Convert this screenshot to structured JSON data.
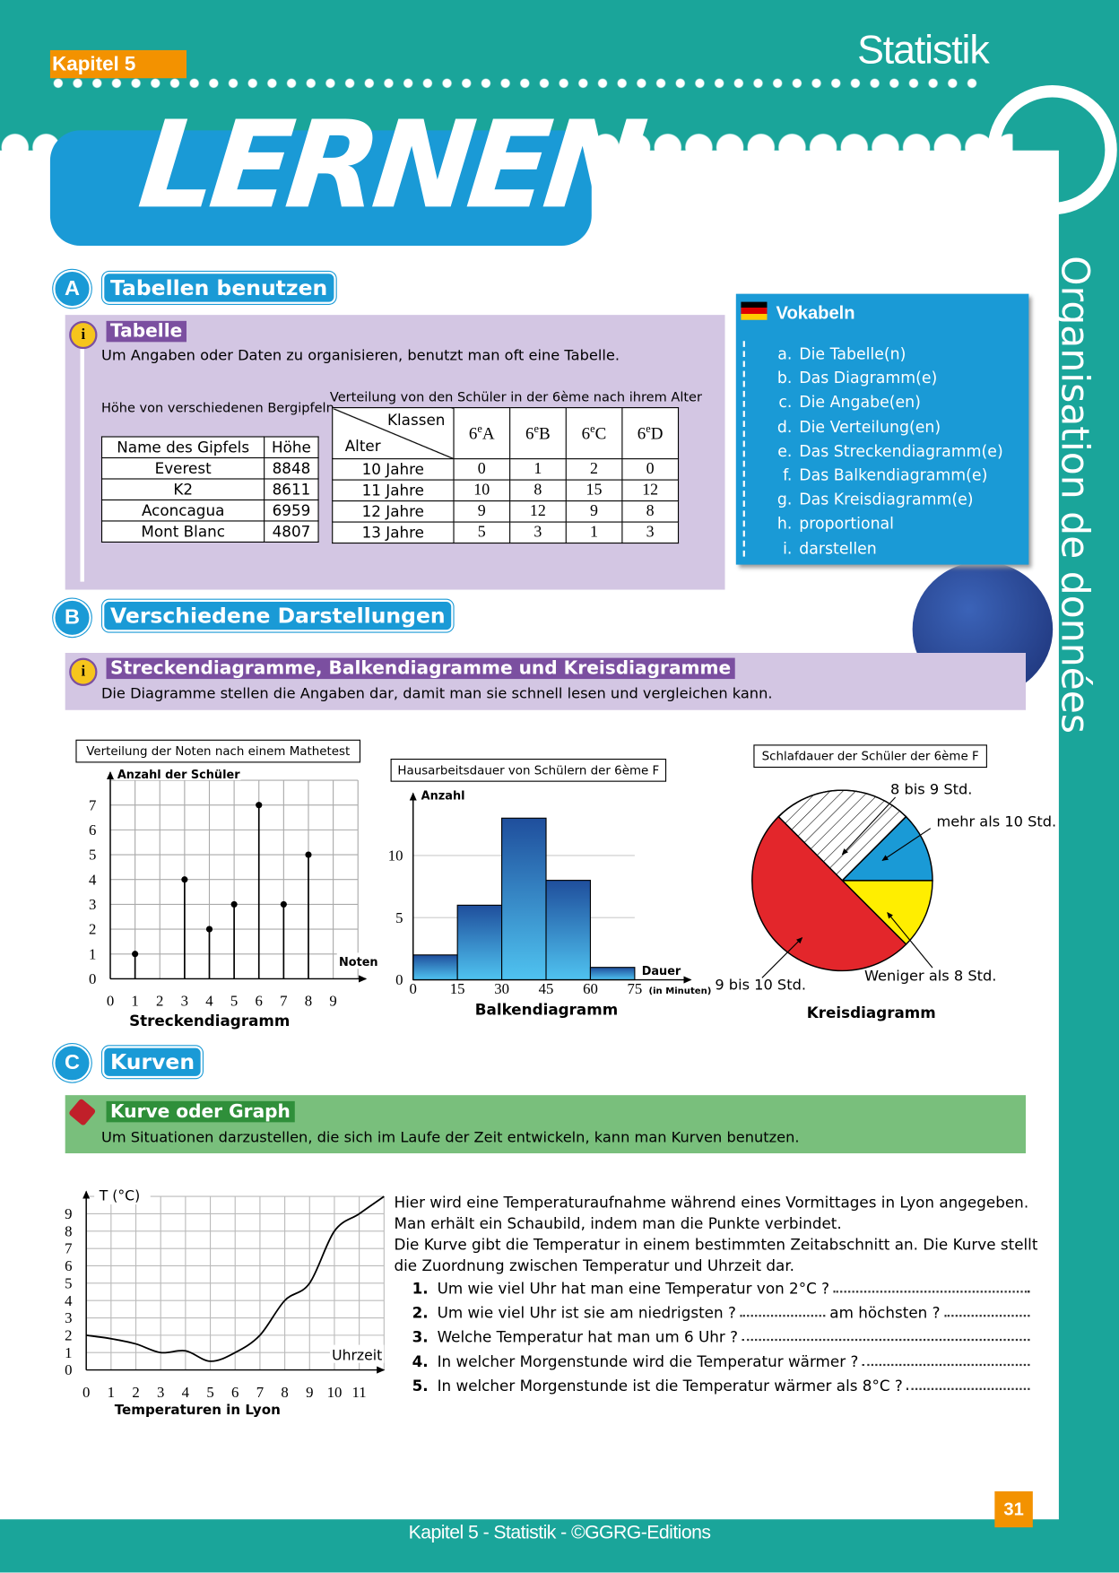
{
  "header": {
    "chapter": "Kapitel 5",
    "subject": "Statistik",
    "banner": "LERNEN",
    "side_title": "Organisation de données"
  },
  "section_a": {
    "letter": "A",
    "title": "Tabellen benutzen",
    "info_title": "Tabelle",
    "info_text": "Um Angaben oder Daten zu organisieren, benutzt man oft eine Tabelle.",
    "table1": {
      "caption": "Höhe von verschiedenen Bergipfeln",
      "header": [
        "Name des Gipfels",
        "Höhe"
      ],
      "rows": [
        [
          "Everest",
          8848
        ],
        [
          "K2",
          8611
        ],
        [
          "Aconcagua",
          6959
        ],
        [
          "Mont Blanc",
          4807
        ]
      ]
    },
    "table2": {
      "caption": "Verteilung von den Schüler in der 6ème nach ihrem Alter",
      "corner_top": "Klassen",
      "corner_bottom": "Alter",
      "header": [
        {
          "grade": "6",
          "sup": "e",
          "class": "A"
        },
        {
          "grade": "6",
          "sup": "e",
          "class": "B"
        },
        {
          "grade": "6",
          "sup": "e",
          "class": "C"
        },
        {
          "grade": "6",
          "sup": "e",
          "class": "D"
        }
      ],
      "rows": [
        [
          "10 Jahre",
          0,
          1,
          2,
          0
        ],
        [
          "11 Jahre",
          10,
          8,
          15,
          12
        ],
        [
          "12 Jahre",
          9,
          12,
          9,
          8
        ],
        [
          "13 Jahre",
          5,
          3,
          1,
          3
        ]
      ]
    }
  },
  "vocab": {
    "title": "Vokabeln",
    "items": [
      {
        "letter": "a.",
        "text": "Die Tabelle(n)"
      },
      {
        "letter": "b.",
        "text": "Das Diagramm(e)"
      },
      {
        "letter": "c.",
        "text": "Die Angabe(en)"
      },
      {
        "letter": "d.",
        "text": "Die Verteilung(en)"
      },
      {
        "letter": "e.",
        "text": "Das Streckendiagramm(e)"
      },
      {
        "letter": "f.",
        "text": "Das Balkendiagramm(e)"
      },
      {
        "letter": "g.",
        "text": "Das Kreisdiagramm(e)"
      },
      {
        "letter": "h.",
        "text": "proportional"
      },
      {
        "letter": "i.",
        "text": "darstellen"
      }
    ]
  },
  "section_b": {
    "letter": "B",
    "title": "Verschiedene Darstellungen",
    "info_title": "Streckendiagramme, Balkendiagramme und Kreisdiagramme",
    "info_text": "Die Diagramme stellen die Angaben dar, damit man sie schnell lesen und vergleichen kann.",
    "charts": [
      {
        "type": "stem",
        "title": "Verteilung der Noten nach einem Mathetest",
        "y_label": "Anzahl der Schüler",
        "x_label": "Noten",
        "caption": "Streckendiagramm",
        "x": [
          1,
          3,
          4,
          5,
          6,
          7,
          8
        ],
        "values": [
          1,
          4,
          2,
          3,
          7,
          3,
          5
        ],
        "color": "#000000",
        "xlim": [
          0,
          10
        ],
        "xticks": [
          0,
          1,
          2,
          3,
          4,
          5,
          6,
          7,
          8,
          9
        ],
        "ylim": [
          0,
          8
        ],
        "yticks": [
          0,
          1,
          2,
          3,
          4,
          5,
          6,
          7
        ],
        "grid": true
      },
      {
        "type": "histogram",
        "title": "Hausarbeitsdauer von Schülern der 6ème F",
        "y_label": "Anzahl",
        "x_label": "Dauer",
        "x_unit": "(in Minuten)",
        "caption": "Balkendiagramm",
        "bins": [
          0,
          15,
          30,
          45,
          60,
          75
        ],
        "counts": [
          2,
          6,
          13,
          8,
          1
        ],
        "colors": [
          "#1f4e9c",
          "#4fc3f0"
        ],
        "xlim": [
          0,
          94
        ],
        "xticks": [
          0,
          15,
          30,
          45,
          60,
          75
        ],
        "ylim": [
          0,
          15
        ],
        "yticks": [
          0,
          5,
          10
        ],
        "grid": true
      },
      {
        "type": "pie",
        "title": "Schlafdauer der Schüler der 6ème F",
        "caption": "Kreisdiagramm",
        "slices": [
          {
            "label": "8 bis 9 Std.",
            "value": 25,
            "color": "#ffffff",
            "hatched": true
          },
          {
            "label": "mehr als 10 Std.",
            "value": 12.5,
            "color": "#1a9ad6"
          },
          {
            "label": "Weniger als 8 Std.",
            "value": 12.5,
            "color": "#ffee00"
          },
          {
            "label": "9 bis 10 Std.",
            "value": 50,
            "color": "#e3262b"
          }
        ]
      }
    ]
  },
  "section_c": {
    "letter": "C",
    "title": "Kurven",
    "info_title": "Kurve oder Graph",
    "info_text": "Um Situationen darzustellen, die sich im Laufe der Zeit entwickeln, kann man Kurven benutzen.",
    "chart": {
      "type": "line",
      "y_label": "T (°C)",
      "x_label": "Uhrzeit",
      "caption": "Temperaturen in Lyon",
      "x": [
        0,
        1,
        2,
        3,
        4,
        5,
        6,
        7,
        8,
        9,
        10,
        11,
        12
      ],
      "values": [
        2,
        1.8,
        1.5,
        1,
        1.1,
        0.5,
        1,
        2,
        4,
        5,
        8,
        9,
        10
      ],
      "color": "#000000",
      "xlim": [
        0,
        12
      ],
      "xticks": [
        0,
        1,
        2,
        3,
        4,
        5,
        6,
        7,
        8,
        9,
        10,
        11
      ],
      "ylim": [
        0,
        10
      ],
      "yticks": [
        0,
        1,
        2,
        3,
        4,
        5,
        6,
        7,
        8,
        9
      ],
      "grid": true
    },
    "paragraphs": [
      "Hier wird eine Temperaturaufnahme während eines Vormittages in Lyon angegeben.",
      "Man erhält ein Schaubild, indem man die Punkte verbindet.",
      "Die Kurve gibt die Temperatur in einem bestimmten Zeitabschnitt an. Die Kurve stellt die Zuordnung zwischen Temperatur und Uhrzeit dar."
    ],
    "questions": [
      {
        "num": "1.",
        "parts": [
          "Um wie viel Uhr hat man eine Temperatur von 2°C ?"
        ]
      },
      {
        "num": "2.",
        "parts": [
          "Um wie viel Uhr ist sie am niedrigsten ?",
          "am höchsten ?"
        ]
      },
      {
        "num": "3.",
        "parts": [
          "Welche Temperatur hat man um 6 Uhr ?"
        ]
      },
      {
        "num": "4.",
        "parts": [
          "In welcher Morgenstunde wird die Temperatur wärmer ?"
        ]
      },
      {
        "num": "5.",
        "parts": [
          "In welcher Morgenstunde ist die Temperatur wärmer als 8°C ?"
        ]
      }
    ]
  },
  "footer": {
    "text": "Kapitel 5 - Statistik - ©GGRG-Editions",
    "page": 31
  }
}
